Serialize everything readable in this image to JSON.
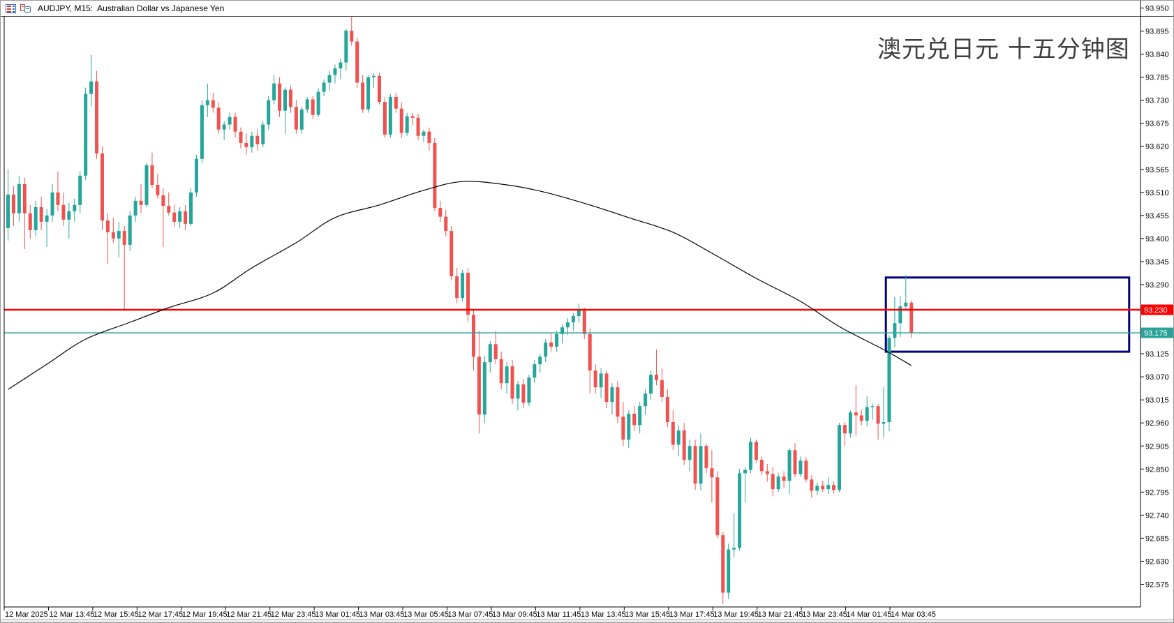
{
  "titlebar": {
    "title": "AUDJPY, M15:  Australian Dollar vs Japanese Yen",
    "icons": [
      "quotes-table-icon",
      "chart-windows-icon"
    ]
  },
  "overlay": {
    "title": "澳元兑日元 十五分钟图",
    "color": "#3e3e3e"
  },
  "chart_data": {
    "type": "candlestick",
    "symbol": "AUDJPY",
    "timeframe": "M15",
    "interval_minutes": 15,
    "first_candle_time": "12 Mar 2025 12:00",
    "last_candle_time": "14 Mar 2025 04:45",
    "colors": {
      "up": "#26a69a",
      "down": "#ef5350",
      "ma": "#000000",
      "hline_red": "#ff0000",
      "hline_teal": "#2aa29a",
      "rect": "#000080",
      "background": "#ffffff",
      "axis_text": "#000000"
    },
    "y_axis": {
      "side": "right",
      "min": 92.575,
      "max": 93.95,
      "step": 0.055,
      "labels": [
        "93.950",
        "93.895",
        "93.840",
        "93.785",
        "93.730",
        "93.675",
        "93.620",
        "93.565",
        "93.510",
        "93.455",
        "93.400",
        "93.345",
        "93.290",
        "93.235",
        "93.180",
        "93.125",
        "93.070",
        "93.015",
        "92.960",
        "92.905",
        "92.850",
        "92.795",
        "92.740",
        "92.685",
        "92.630",
        "92.575"
      ]
    },
    "x_axis": {
      "labels": [
        "12 Mar 2025",
        "12 Mar 13:45",
        "12 Mar 15:45",
        "12 Mar 17:45",
        "12 Mar 19:45",
        "12 Mar 21:45",
        "12 Mar 23:45",
        "13 Mar 01:45",
        "13 Mar 03:45",
        "13 Mar 05:45",
        "13 Mar 07:45",
        "13 Mar 09:45",
        "13 Mar 11:45",
        "13 Mar 13:45",
        "13 Mar 15:45",
        "13 Mar 17:45",
        "13 Mar 19:45",
        "13 Mar 21:45",
        "13 Mar 23:45",
        "14 Mar 01:45",
        "14 Mar 03:45"
      ],
      "bars_per_label": 8
    },
    "price_lines": [
      {
        "price": 93.23,
        "label": "93.230",
        "color": "#ff0000",
        "width": 2.5,
        "name": "resistance-line"
      },
      {
        "price": 93.175,
        "label": "93.175",
        "color": "#2aa29a",
        "width": 1.5,
        "name": "current-price-line"
      }
    ],
    "rectangle": {
      "bar_start": 158.4,
      "bar_end": 202.3,
      "price_top": 93.307,
      "price_bottom": 93.13,
      "color": "#000080",
      "stroke_width": 3
    },
    "moving_average": {
      "color": "#000000",
      "points": [
        [
          0,
          93.04
        ],
        [
          7,
          93.1
        ],
        [
          14,
          93.16
        ],
        [
          22,
          93.2
        ],
        [
          29,
          93.235
        ],
        [
          37,
          93.27
        ],
        [
          44,
          93.33
        ],
        [
          52,
          93.39
        ],
        [
          59,
          93.45
        ],
        [
          67,
          93.48
        ],
        [
          75,
          93.515
        ],
        [
          82,
          93.536
        ],
        [
          90,
          93.528
        ],
        [
          97,
          93.51
        ],
        [
          105,
          93.48
        ],
        [
          112,
          93.45
        ],
        [
          120,
          93.415
        ],
        [
          127,
          93.365
        ],
        [
          135,
          93.305
        ],
        [
          143,
          93.25
        ],
        [
          150,
          93.19
        ],
        [
          158,
          93.135
        ],
        [
          163,
          93.097
        ]
      ]
    },
    "candles": [
      [
        93.425,
        93.565,
        93.395,
        93.505
      ],
      [
        93.505,
        93.525,
        93.43,
        93.46
      ],
      [
        93.46,
        93.55,
        93.44,
        93.53
      ],
      [
        93.53,
        93.545,
        93.375,
        93.46
      ],
      [
        93.46,
        93.48,
        93.4,
        93.42
      ],
      [
        93.42,
        93.49,
        93.405,
        93.475
      ],
      [
        93.475,
        93.5,
        93.42,
        93.44
      ],
      [
        93.44,
        93.47,
        93.38,
        93.455
      ],
      [
        93.455,
        93.53,
        93.44,
        93.51
      ],
      [
        93.51,
        93.56,
        93.465,
        93.48
      ],
      [
        93.48,
        93.51,
        93.43,
        93.445
      ],
      [
        93.445,
        93.485,
        93.4,
        93.465
      ],
      [
        93.465,
        93.495,
        93.44,
        93.48
      ],
      [
        93.48,
        93.56,
        93.46,
        93.55
      ],
      [
        93.55,
        93.76,
        93.54,
        93.745
      ],
      [
        93.745,
        93.838,
        93.715,
        93.775
      ],
      [
        93.775,
        93.8,
        93.59,
        93.603
      ],
      [
        93.603,
        93.62,
        93.42,
        93.443
      ],
      [
        93.443,
        93.46,
        93.34,
        93.415
      ],
      [
        93.415,
        93.45,
        93.39,
        93.4
      ],
      [
        93.4,
        93.44,
        93.355,
        93.418
      ],
      [
        93.418,
        93.43,
        93.227,
        93.385
      ],
      [
        93.385,
        93.465,
        93.37,
        93.455
      ],
      [
        93.455,
        93.5,
        93.44,
        93.49
      ],
      [
        93.49,
        93.53,
        93.46,
        93.48
      ],
      [
        93.48,
        93.58,
        93.475,
        93.575
      ],
      [
        93.575,
        93.605,
        93.52,
        93.528
      ],
      [
        93.528,
        93.555,
        93.495,
        93.503
      ],
      [
        93.503,
        93.52,
        93.38,
        93.478
      ],
      [
        93.478,
        93.51,
        93.455,
        93.462
      ],
      [
        93.462,
        93.48,
        93.428,
        93.44
      ],
      [
        93.44,
        93.475,
        93.425,
        93.465
      ],
      [
        93.465,
        93.48,
        93.42,
        93.435
      ],
      [
        93.435,
        93.52,
        93.43,
        93.51
      ],
      [
        93.51,
        93.6,
        93.5,
        93.59
      ],
      [
        93.59,
        93.73,
        93.58,
        93.718
      ],
      [
        93.718,
        93.77,
        93.69,
        93.73
      ],
      [
        93.73,
        93.748,
        93.7,
        93.712
      ],
      [
        93.712,
        93.725,
        93.65,
        93.66
      ],
      [
        93.66,
        93.68,
        93.635,
        93.672
      ],
      [
        93.672,
        93.7,
        93.66,
        93.69
      ],
      [
        93.69,
        93.7,
        93.64,
        93.655
      ],
      [
        93.655,
        93.665,
        93.615,
        93.628
      ],
      [
        93.628,
        93.65,
        93.6,
        93.618
      ],
      [
        93.618,
        93.655,
        93.605,
        93.645
      ],
      [
        93.645,
        93.66,
        93.61,
        93.625
      ],
      [
        93.625,
        93.68,
        93.618,
        93.672
      ],
      [
        93.672,
        93.74,
        93.66,
        93.73
      ],
      [
        93.73,
        93.79,
        93.72,
        93.77
      ],
      [
        93.77,
        93.785,
        93.69,
        93.705
      ],
      [
        93.705,
        93.76,
        93.65,
        93.755
      ],
      [
        93.755,
        93.765,
        93.7,
        93.714
      ],
      [
        93.714,
        93.73,
        93.65,
        93.66
      ],
      [
        93.66,
        93.715,
        93.65,
        93.708
      ],
      [
        93.708,
        93.738,
        93.7,
        93.732
      ],
      [
        93.732,
        93.74,
        93.685,
        93.695
      ],
      [
        93.695,
        93.758,
        93.69,
        93.75
      ],
      [
        93.75,
        93.78,
        93.74,
        93.772
      ],
      [
        93.772,
        93.8,
        93.752,
        93.79
      ],
      [
        93.79,
        93.815,
        93.77,
        93.806
      ],
      [
        93.806,
        93.83,
        93.78,
        93.82
      ],
      [
        93.82,
        93.9,
        93.8,
        93.896
      ],
      [
        93.896,
        93.938,
        93.86,
        93.87
      ],
      [
        93.87,
        93.88,
        93.76,
        93.772
      ],
      [
        93.772,
        93.79,
        93.7,
        93.708
      ],
      [
        93.708,
        93.79,
        93.7,
        93.785
      ],
      [
        93.785,
        93.795,
        93.76,
        93.788
      ],
      [
        93.788,
        93.795,
        93.72,
        93.726
      ],
      [
        93.726,
        93.738,
        93.64,
        93.648
      ],
      [
        93.648,
        93.745,
        93.64,
        93.738
      ],
      [
        93.738,
        93.748,
        93.7,
        93.71
      ],
      [
        93.71,
        93.725,
        93.64,
        93.652
      ],
      [
        93.652,
        93.7,
        93.645,
        93.692
      ],
      [
        93.692,
        93.7,
        93.67,
        93.688
      ],
      [
        93.688,
        93.698,
        93.635,
        93.645
      ],
      [
        93.645,
        93.66,
        93.63,
        93.655
      ],
      [
        93.655,
        93.665,
        93.61,
        93.628
      ],
      [
        93.628,
        93.64,
        93.465,
        93.473
      ],
      [
        93.473,
        93.49,
        93.44,
        93.452
      ],
      [
        93.452,
        93.468,
        93.405,
        93.418
      ],
      [
        93.418,
        93.43,
        93.3,
        93.31
      ],
      [
        93.31,
        93.33,
        93.245,
        93.258
      ],
      [
        93.258,
        93.325,
        93.25,
        93.318
      ],
      [
        93.318,
        93.33,
        93.2,
        93.218
      ],
      [
        93.218,
        93.23,
        93.085,
        93.118
      ],
      [
        93.118,
        93.18,
        92.935,
        92.98
      ],
      [
        92.98,
        93.12,
        92.96,
        93.105
      ],
      [
        93.105,
        93.155,
        93.08,
        93.148
      ],
      [
        93.148,
        93.18,
        93.1,
        93.112
      ],
      [
        93.112,
        93.13,
        93.04,
        93.055
      ],
      [
        93.055,
        93.105,
        93.03,
        93.095
      ],
      [
        93.095,
        93.11,
        93.005,
        93.018
      ],
      [
        93.018,
        93.06,
        92.99,
        93.052
      ],
      [
        93.052,
        93.065,
        92.995,
        93.008
      ],
      [
        93.008,
        93.075,
        93.0,
        93.068
      ],
      [
        93.068,
        93.11,
        93.055,
        93.1
      ],
      [
        93.1,
        93.125,
        93.08,
        93.118
      ],
      [
        93.118,
        93.16,
        93.105,
        93.152
      ],
      [
        93.152,
        93.175,
        93.13,
        93.142
      ],
      [
        93.142,
        93.18,
        93.13,
        93.172
      ],
      [
        93.172,
        93.195,
        93.15,
        93.188
      ],
      [
        93.188,
        93.21,
        93.17,
        93.2
      ],
      [
        93.2,
        93.222,
        93.18,
        93.215
      ],
      [
        93.215,
        93.245,
        93.2,
        93.228
      ],
      [
        93.228,
        93.235,
        93.16,
        93.172
      ],
      [
        93.172,
        93.185,
        93.03,
        93.085
      ],
      [
        93.085,
        93.1,
        93.03,
        93.045
      ],
      [
        93.045,
        93.09,
        93.02,
        93.078
      ],
      [
        93.078,
        93.085,
        92.995,
        93.01
      ],
      [
        93.01,
        93.055,
        92.98,
        93.045
      ],
      [
        93.045,
        93.06,
        92.96,
        92.975
      ],
      [
        92.975,
        93.01,
        92.905,
        92.92
      ],
      [
        92.92,
        92.99,
        92.9,
        92.982
      ],
      [
        92.982,
        93.0,
        92.94,
        92.955
      ],
      [
        92.955,
        93.01,
        92.935,
        93.0
      ],
      [
        93.0,
        93.04,
        92.98,
        93.03
      ],
      [
        93.03,
        93.085,
        93.015,
        93.075
      ],
      [
        93.075,
        93.135,
        93.05,
        93.062
      ],
      [
        93.062,
        93.09,
        93.01,
        93.022
      ],
      [
        93.022,
        93.04,
        92.95,
        92.962
      ],
      [
        92.962,
        92.99,
        92.895,
        92.908
      ],
      [
        92.908,
        92.955,
        92.88,
        92.942
      ],
      [
        92.942,
        92.96,
        92.86,
        92.872
      ],
      [
        92.872,
        92.92,
        92.845,
        92.905
      ],
      [
        92.905,
        92.92,
        92.8,
        92.815
      ],
      [
        92.815,
        92.935,
        92.8,
        92.905
      ],
      [
        92.905,
        92.91,
        92.84,
        92.852
      ],
      [
        92.852,
        92.895,
        92.77,
        92.83
      ],
      [
        92.83,
        92.845,
        92.685,
        92.692
      ],
      [
        92.692,
        92.7,
        92.528,
        92.555
      ],
      [
        92.555,
        92.672,
        92.54,
        92.658
      ],
      [
        92.658,
        92.745,
        92.64,
        92.662
      ],
      [
        92.662,
        92.85,
        92.655,
        92.84
      ],
      [
        92.84,
        92.855,
        92.77,
        92.848
      ],
      [
        92.848,
        92.925,
        92.84,
        92.915
      ],
      [
        92.915,
        92.92,
        92.865,
        92.872
      ],
      [
        92.872,
        92.88,
        92.835,
        92.845
      ],
      [
        92.845,
        92.862,
        92.82,
        92.838
      ],
      [
        92.838,
        92.855,
        92.785,
        92.802
      ],
      [
        92.802,
        92.84,
        92.795,
        92.832
      ],
      [
        92.832,
        92.845,
        92.805,
        92.822
      ],
      [
        92.822,
        92.9,
        92.79,
        92.895
      ],
      [
        92.895,
        92.912,
        92.83,
        92.838
      ],
      [
        92.838,
        92.88,
        92.832,
        92.87
      ],
      [
        92.87,
        92.878,
        92.818,
        92.825
      ],
      [
        92.825,
        92.835,
        92.782,
        92.798
      ],
      [
        92.798,
        92.818,
        92.788,
        92.81
      ],
      [
        92.81,
        92.822,
        92.795,
        92.802
      ],
      [
        92.802,
        92.83,
        92.79,
        92.812
      ],
      [
        92.812,
        92.82,
        92.792,
        92.8
      ],
      [
        92.8,
        92.96,
        92.795,
        92.955
      ],
      [
        92.955,
        92.962,
        92.905,
        92.935
      ],
      [
        92.935,
        92.99,
        92.925,
        92.985
      ],
      [
        92.985,
        93.05,
        92.93,
        92.978
      ],
      [
        92.978,
        92.992,
        92.955,
        92.965
      ],
      [
        92.965,
        93.024,
        92.952,
        92.998
      ],
      [
        92.998,
        93.006,
        92.968,
        93.0
      ],
      [
        93.0,
        93.005,
        92.92,
        92.958
      ],
      [
        92.958,
        93.045,
        92.925,
        92.962
      ],
      [
        92.962,
        93.17,
        92.94,
        93.163
      ],
      [
        93.163,
        93.26,
        93.14,
        93.198
      ],
      [
        93.198,
        93.262,
        93.165,
        93.238
      ],
      [
        93.238,
        93.313,
        93.228,
        93.247
      ],
      [
        93.247,
        93.252,
        93.163,
        93.175
      ]
    ]
  }
}
